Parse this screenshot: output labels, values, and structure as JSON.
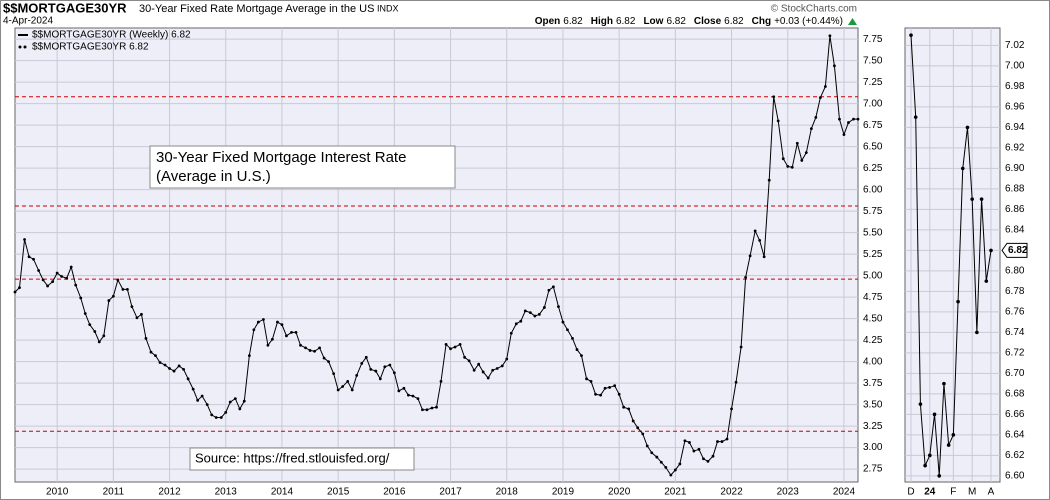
{
  "chart_data": [
    {
      "type": "line",
      "symbol": "$$MORTGAGE30YR",
      "title": "30-Year Fixed Rate Mortgage Average in the US",
      "exchange": "INDX",
      "date": "4-Apr-2024",
      "quote": [
        {
          "label": "Open",
          "value": 6.82
        },
        {
          "label": "High",
          "value": 6.82
        },
        {
          "label": "Low",
          "value": 6.82
        },
        {
          "label": "Close",
          "value": 6.82
        },
        {
          "label": "Chg",
          "value": "+0.03 (+0.44%)"
        }
      ],
      "watermark": "© StockCharts.com",
      "legend": [
        "$$MORTGAGE30YR (Weekly) 6.82",
        "$$MORTGAGE30YR 6.82"
      ],
      "annotation": [
        "30-Year Fixed Mortgage Interest Rate",
        "(Average in U.S.)"
      ],
      "source": "Source: https://fred.stlouisfed.org/",
      "x": [
        2009.25,
        2009.33,
        2009.42,
        2009.5,
        2009.58,
        2009.67,
        2009.75,
        2009.83,
        2009.92,
        2010,
        2010.08,
        2010.17,
        2010.25,
        2010.33,
        2010.42,
        2010.5,
        2010.58,
        2010.67,
        2010.75,
        2010.83,
        2010.92,
        2011,
        2011.08,
        2011.17,
        2011.25,
        2011.33,
        2011.42,
        2011.5,
        2011.58,
        2011.67,
        2011.75,
        2011.83,
        2011.92,
        2012,
        2012.08,
        2012.17,
        2012.25,
        2012.33,
        2012.42,
        2012.5,
        2012.58,
        2012.67,
        2012.75,
        2012.83,
        2012.92,
        2013,
        2013.08,
        2013.17,
        2013.25,
        2013.33,
        2013.42,
        2013.5,
        2013.58,
        2013.67,
        2013.75,
        2013.83,
        2013.92,
        2014,
        2014.08,
        2014.17,
        2014.25,
        2014.33,
        2014.42,
        2014.5,
        2014.58,
        2014.67,
        2014.75,
        2014.83,
        2014.92,
        2015,
        2015.08,
        2015.17,
        2015.25,
        2015.33,
        2015.42,
        2015.5,
        2015.58,
        2015.67,
        2015.75,
        2015.83,
        2015.92,
        2016,
        2016.08,
        2016.17,
        2016.25,
        2016.33,
        2016.42,
        2016.5,
        2016.58,
        2016.67,
        2016.75,
        2016.83,
        2016.92,
        2017,
        2017.08,
        2017.17,
        2017.25,
        2017.33,
        2017.42,
        2017.5,
        2017.58,
        2017.67,
        2017.75,
        2017.83,
        2017.92,
        2018,
        2018.08,
        2018.17,
        2018.25,
        2018.33,
        2018.42,
        2018.5,
        2018.58,
        2018.67,
        2018.75,
        2018.83,
        2018.92,
        2019,
        2019.08,
        2019.17,
        2019.25,
        2019.33,
        2019.42,
        2019.5,
        2019.58,
        2019.67,
        2019.75,
        2019.83,
        2019.92,
        2020,
        2020.08,
        2020.17,
        2020.25,
        2020.33,
        2020.42,
        2020.5,
        2020.58,
        2020.67,
        2020.75,
        2020.83,
        2020.92,
        2021,
        2021.08,
        2021.17,
        2021.25,
        2021.33,
        2021.42,
        2021.5,
        2021.58,
        2021.67,
        2021.75,
        2021.83,
        2021.92,
        2022,
        2022.08,
        2022.17,
        2022.25,
        2022.33,
        2022.42,
        2022.5,
        2022.58,
        2022.67,
        2022.75,
        2022.83,
        2022.92,
        2023,
        2023.08,
        2023.17,
        2023.25,
        2023.33,
        2023.42,
        2023.5,
        2023.58,
        2023.67,
        2023.75,
        2023.83,
        2023.92,
        2024,
        2024.08,
        2024.17,
        2024.25
      ],
      "series": [
        {
          "name": "$$MORTGAGE30YR",
          "color": "#000000",
          "values": [
            4.81,
            4.86,
            5.42,
            5.22,
            5.19,
            5.06,
            4.95,
            4.88,
            4.93,
            5.03,
            4.99,
            4.97,
            5.1,
            4.89,
            4.74,
            4.56,
            4.43,
            4.35,
            4.23,
            4.3,
            4.71,
            4.76,
            4.95,
            4.84,
            4.84,
            4.64,
            4.51,
            4.55,
            4.27,
            4.11,
            4.07,
            3.99,
            3.96,
            3.92,
            3.89,
            3.95,
            3.91,
            3.8,
            3.68,
            3.55,
            3.6,
            3.5,
            3.38,
            3.35,
            3.35,
            3.41,
            3.53,
            3.57,
            3.45,
            3.54,
            4.07,
            4.37,
            4.46,
            4.49,
            4.19,
            4.26,
            4.46,
            4.43,
            4.3,
            4.34,
            4.34,
            4.19,
            4.16,
            4.13,
            4.12,
            4.16,
            4.04,
            4,
            3.86,
            3.67,
            3.71,
            3.77,
            3.67,
            3.84,
            3.98,
            4.05,
            3.91,
            3.89,
            3.8,
            3.94,
            3.96,
            3.87,
            3.66,
            3.69,
            3.61,
            3.6,
            3.57,
            3.44,
            3.44,
            3.46,
            3.47,
            3.77,
            4.2,
            4.15,
            4.17,
            4.2,
            4.05,
            4.01,
            3.9,
            3.97,
            3.88,
            3.81,
            3.9,
            3.92,
            3.95,
            4.03,
            4.33,
            4.44,
            4.47,
            4.59,
            4.57,
            4.53,
            4.55,
            4.63,
            4.83,
            4.87,
            4.64,
            4.46,
            4.37,
            4.27,
            4.14,
            4.07,
            3.8,
            3.77,
            3.62,
            3.61,
            3.69,
            3.7,
            3.72,
            3.62,
            3.47,
            3.45,
            3.31,
            3.23,
            3.16,
            3.02,
            2.94,
            2.89,
            2.83,
            2.77,
            2.68,
            2.74,
            2.81,
            3.08,
            3.06,
            2.96,
            2.98,
            2.87,
            2.84,
            2.9,
            3.07,
            3.07,
            3.1,
            3.45,
            3.76,
            4.17,
            4.98,
            5.23,
            5.52,
            5.41,
            5.22,
            6.11,
            7.08,
            6.8,
            6.36,
            6.27,
            6.26,
            6.54,
            6.34,
            6.43,
            6.71,
            6.84,
            7.07,
            7.2,
            7.79,
            7.44,
            6.82,
            6.64,
            6.78,
            6.82,
            6.82
          ]
        }
      ],
      "reference_lines": [
        7.08,
        5.81,
        4.96,
        3.19
      ],
      "xlim": [
        2009.25,
        2024.25
      ],
      "xticks": [
        2010,
        2011,
        2012,
        2013,
        2014,
        2015,
        2016,
        2017,
        2018,
        2019,
        2020,
        2021,
        2022,
        2023,
        2024
      ],
      "ylim": [
        2.6,
        7.88
      ],
      "yticks": [
        2.75,
        {
          "value": 3,
          "label": "3.00"
        },
        3.25,
        {
          "value": 3.5,
          "label": "3.50"
        },
        3.75,
        {
          "value": 4,
          "label": "4.00"
        },
        4.25,
        {
          "value": 4.5,
          "label": "4.50"
        },
        4.75,
        {
          "value": 5,
          "label": "5.00"
        },
        5.25,
        {
          "value": 5.5,
          "label": "5.50"
        },
        5.75,
        {
          "value": 6,
          "label": "6.00"
        },
        6.25,
        {
          "value": 6.5,
          "label": "6.50"
        },
        6.75,
        {
          "value": 7,
          "label": "7.00"
        },
        7.25,
        {
          "value": 7.5,
          "label": "7.50"
        },
        7.75
      ],
      "grid": true
    },
    {
      "type": "line",
      "categories": [
        "D",
        null,
        null,
        null,
        "24",
        null,
        null,
        null,
        null,
        "F",
        null,
        null,
        null,
        "M",
        null,
        null,
        null,
        "A"
      ],
      "series": [
        {
          "name": null,
          "color": "#000000",
          "values": [
            7.03,
            6.95,
            6.67,
            6.61,
            6.62,
            6.66,
            6.6,
            6.69,
            6.63,
            6.64,
            6.77,
            6.9,
            6.94,
            6.87,
            6.74,
            6.87,
            6.79,
            6.82
          ]
        }
      ],
      "ylim": [
        6.594,
        7.037
      ],
      "yticks": [
        {
          "value": 6.6,
          "label": "6.60"
        },
        6.62,
        6.64,
        6.66,
        6.68,
        {
          "value": 6.7,
          "label": "6.70"
        },
        6.72,
        6.74,
        6.76,
        6.78,
        {
          "value": 6.8,
          "label": "6.80"
        },
        6.82,
        6.84,
        6.86,
        6.88,
        {
          "value": 6.9,
          "label": "6.90"
        },
        6.92,
        6.94,
        6.96,
        6.98,
        {
          "value": 7,
          "label": "7.00"
        },
        7.02
      ],
      "grid": true
    }
  ]
}
